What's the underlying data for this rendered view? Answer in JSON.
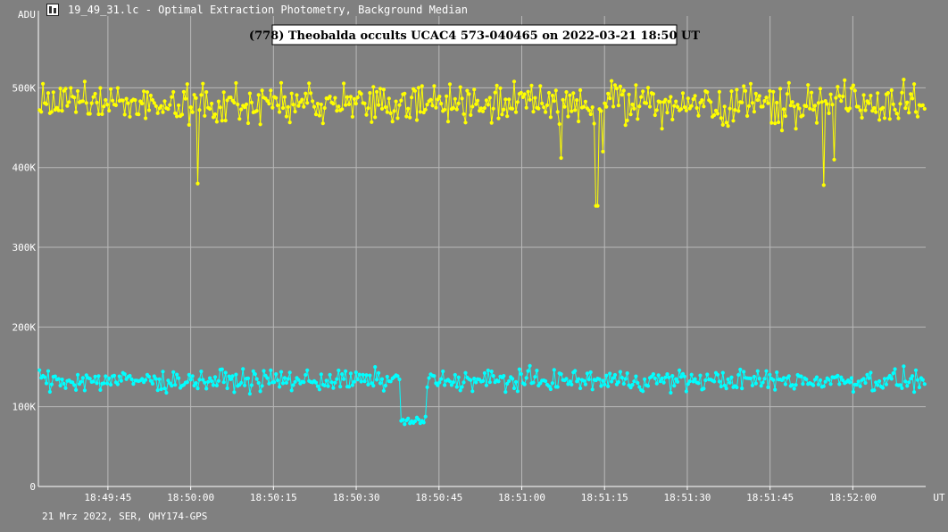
{
  "window": {
    "title": "19_49_31.lc - Optimal Extraction Photometry, Background Median",
    "icon": "lightcurve-app-icon"
  },
  "footer": {
    "text": "21 Mrz 2022, SER, QHY174-GPS"
  },
  "colors": {
    "background": "#808080",
    "grid": "#b8b8b8",
    "target": "#ffff00",
    "comparison": "#00ffff",
    "text": "#ffffff"
  },
  "chart_data": {
    "type": "line",
    "title": "(778) Theobalda occults UCAC4 573-040465 on 2022-03-21 18:50 UT",
    "ylabel": "ADU",
    "xunit": "UT",
    "ylim": [
      0,
      590000
    ],
    "xlim_seconds_of_day": [
      67772.4,
      67933.2
    ],
    "yticks": [
      {
        "value": 0,
        "label": "0"
      },
      {
        "value": 100000,
        "label": "100K"
      },
      {
        "value": 200000,
        "label": "200K"
      },
      {
        "value": 300000,
        "label": "300K"
      },
      {
        "value": 400000,
        "label": "400K"
      },
      {
        "value": 500000,
        "label": "500K"
      }
    ],
    "xticks": [
      {
        "value": 67785,
        "label": "18:49:45"
      },
      {
        "value": 67800,
        "label": "18:50:00"
      },
      {
        "value": 67815,
        "label": "18:50:15"
      },
      {
        "value": 67830,
        "label": "18:50:30"
      },
      {
        "value": 67845,
        "label": "18:50:45"
      },
      {
        "value": 67860,
        "label": "18:51:00"
      },
      {
        "value": 67875,
        "label": "18:51:15"
      },
      {
        "value": 67890,
        "label": "18:51:30"
      },
      {
        "value": 67905,
        "label": "18:51:45"
      },
      {
        "value": 67920,
        "label": "18:52:00"
      }
    ],
    "grid": true,
    "sample_count": 510,
    "series": [
      {
        "id": "target",
        "color": "#ffff00",
        "baseline": 480000,
        "scatter": 26000,
        "dips": [
          {
            "t": 67801.2,
            "value": 380000
          },
          {
            "t": 67873.6,
            "value": 352000
          },
          {
            "t": 67914.6,
            "value": 378000
          },
          {
            "t": 67874.6,
            "value": 420000
          },
          {
            "t": 67916.6,
            "value": 410000
          },
          {
            "t": 67867.0,
            "value": 412000
          }
        ]
      },
      {
        "id": "comparison",
        "color": "#00ffff",
        "baseline": 133000,
        "scatter": 13000,
        "event": {
          "start": 67837.9,
          "end": 67842.8,
          "level": 82000
        }
      }
    ]
  }
}
